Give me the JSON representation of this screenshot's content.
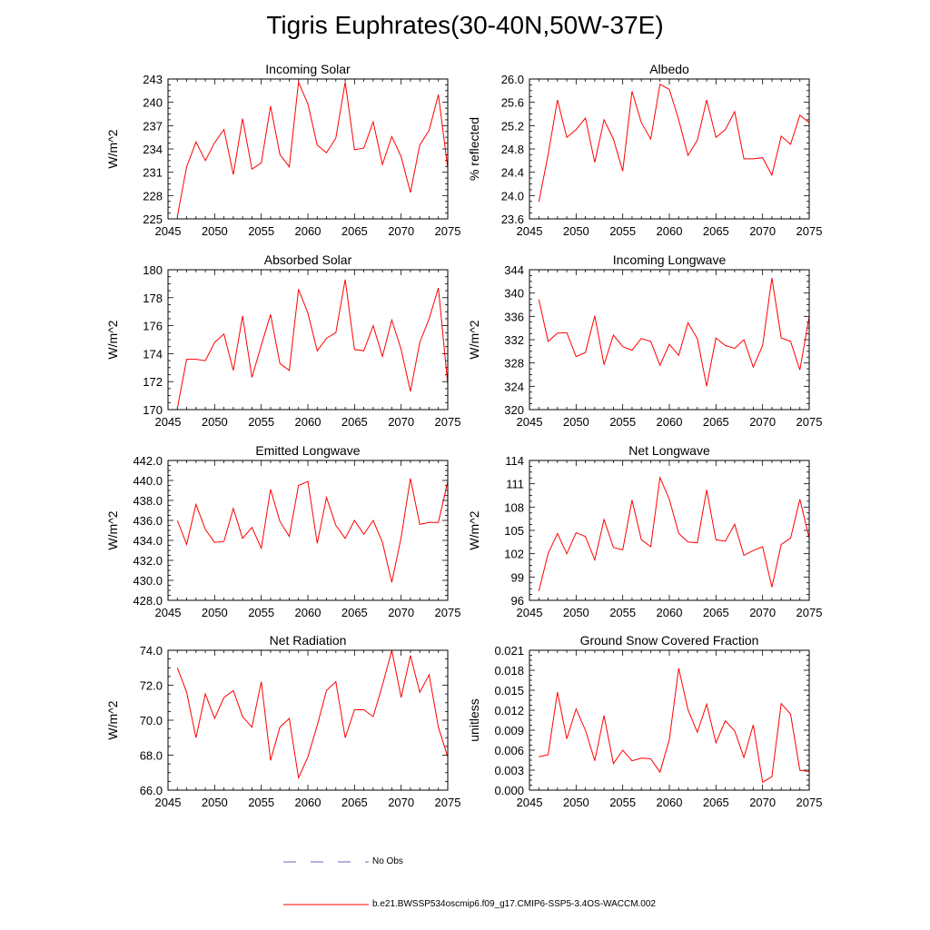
{
  "title": "Tigris Euphrates(30-40N,50W-37E)",
  "colors": {
    "model": "#ff0000",
    "obs": "#6666cc",
    "axis": "#000000"
  },
  "legend": {
    "obs_label": "No Obs",
    "model_label": "b.e21.BWSSP534oscmip6.f09_g17.CMIP6-SSP5-3.4OS-WACCM.002"
  },
  "chart_data": [
    {
      "type": "line",
      "title": "Incoming Solar",
      "ylabel": "W/m^2",
      "xlabel": "",
      "xlim": [
        2045,
        2075
      ],
      "ylim": [
        225,
        243
      ],
      "xticks": [
        2045,
        2050,
        2055,
        2060,
        2065,
        2070,
        2075
      ],
      "yticks": [
        225,
        228,
        231,
        234,
        237,
        240,
        243
      ],
      "ytick_labels": [
        "225",
        "228",
        "231",
        "234",
        "237",
        "240",
        "243"
      ],
      "x": [
        2046,
        2047,
        2048,
        2049,
        2050,
        2051,
        2052,
        2053,
        2054,
        2055,
        2056,
        2057,
        2058,
        2059,
        2060,
        2061,
        2062,
        2063,
        2064,
        2065,
        2066,
        2067,
        2068,
        2069,
        2070,
        2071,
        2072,
        2073,
        2074,
        2075
      ],
      "values": [
        225.3,
        231.7,
        234.9,
        232.5,
        234.8,
        236.5,
        230.7,
        237.9,
        231.4,
        232.2,
        239.5,
        233.3,
        231.7,
        242.6,
        239.8,
        234.5,
        233.5,
        235.4,
        242.6,
        233.9,
        234.1,
        237.5,
        232.0,
        235.6,
        233.0,
        228.4,
        234.5,
        236.4,
        241.0,
        231.5
      ]
    },
    {
      "type": "line",
      "title": "Albedo",
      "ylabel": "% reflected",
      "xlabel": "",
      "xlim": [
        2045,
        2075
      ],
      "ylim": [
        23.6,
        26.0
      ],
      "xticks": [
        2045,
        2050,
        2055,
        2060,
        2065,
        2070,
        2075
      ],
      "yticks": [
        23.6,
        24.0,
        24.4,
        24.8,
        25.2,
        25.6,
        26.0
      ],
      "ytick_labels": [
        "23.6",
        "24.0",
        "24.4",
        "24.8",
        "25.2",
        "25.6",
        "26.0"
      ],
      "x": [
        2046,
        2047,
        2048,
        2049,
        2050,
        2051,
        2052,
        2053,
        2054,
        2055,
        2056,
        2057,
        2058,
        2059,
        2060,
        2061,
        2062,
        2063,
        2064,
        2065,
        2066,
        2067,
        2068,
        2069,
        2070,
        2071,
        2072,
        2073,
        2074,
        2075
      ],
      "values": [
        23.89,
        24.7,
        25.64,
        25.0,
        25.13,
        25.33,
        24.57,
        25.3,
        24.97,
        24.42,
        25.79,
        25.25,
        24.97,
        25.91,
        25.82,
        25.3,
        24.69,
        24.95,
        25.64,
        25.0,
        25.13,
        25.44,
        24.63,
        24.63,
        24.65,
        24.35,
        25.02,
        24.88,
        25.38,
        25.25
      ]
    },
    {
      "type": "line",
      "title": "Absorbed Solar",
      "ylabel": "W/m^2",
      "xlabel": "",
      "xlim": [
        2045,
        2075
      ],
      "ylim": [
        170,
        180
      ],
      "xticks": [
        2045,
        2050,
        2055,
        2060,
        2065,
        2070,
        2075
      ],
      "yticks": [
        170,
        172,
        174,
        176,
        178,
        180
      ],
      "ytick_labels": [
        "170",
        "172",
        "174",
        "176",
        "178",
        "180"
      ],
      "x": [
        2046,
        2047,
        2048,
        2049,
        2050,
        2051,
        2052,
        2053,
        2054,
        2055,
        2056,
        2057,
        2058,
        2059,
        2060,
        2061,
        2062,
        2063,
        2064,
        2065,
        2066,
        2067,
        2068,
        2069,
        2070,
        2071,
        2072,
        2073,
        2074,
        2075
      ],
      "values": [
        170.1,
        173.6,
        173.6,
        173.5,
        174.8,
        175.4,
        172.8,
        176.7,
        172.3,
        174.6,
        176.8,
        173.3,
        172.8,
        178.6,
        176.9,
        174.2,
        175.1,
        175.5,
        179.3,
        174.3,
        174.2,
        176.0,
        173.8,
        176.4,
        174.3,
        171.3,
        174.8,
        176.5,
        178.7,
        171.8
      ]
    },
    {
      "type": "line",
      "title": "Incoming Longwave",
      "ylabel": "W/m^2",
      "xlabel": "",
      "xlim": [
        2045,
        2075
      ],
      "ylim": [
        320,
        344
      ],
      "xticks": [
        2045,
        2050,
        2055,
        2060,
        2065,
        2070,
        2075
      ],
      "yticks": [
        320,
        324,
        328,
        332,
        336,
        340,
        344
      ],
      "ytick_labels": [
        "320",
        "324",
        "328",
        "332",
        "336",
        "340",
        "344"
      ],
      "x": [
        2046,
        2047,
        2048,
        2049,
        2050,
        2051,
        2052,
        2053,
        2054,
        2055,
        2056,
        2057,
        2058,
        2059,
        2060,
        2061,
        2062,
        2063,
        2064,
        2065,
        2066,
        2067,
        2068,
        2069,
        2070,
        2071,
        2072,
        2073,
        2074,
        2075
      ],
      "values": [
        338.9,
        331.7,
        333.1,
        333.2,
        329.1,
        329.8,
        336.1,
        327.7,
        332.8,
        330.8,
        330.2,
        332.2,
        331.7,
        327.6,
        331.2,
        329.3,
        334.9,
        332.2,
        324.0,
        332.3,
        331.0,
        330.5,
        332.0,
        327.3,
        331.0,
        342.6,
        332.3,
        331.7,
        326.8,
        336.0
      ]
    },
    {
      "type": "line",
      "title": "Emitted Longwave",
      "ylabel": "W/m^2",
      "xlabel": "",
      "xlim": [
        2045,
        2075
      ],
      "ylim": [
        428.0,
        442.0
      ],
      "xticks": [
        2045,
        2050,
        2055,
        2060,
        2065,
        2070,
        2075
      ],
      "yticks": [
        428,
        430,
        432,
        434,
        436,
        438,
        440,
        442
      ],
      "ytick_labels": [
        "428.0",
        "430.0",
        "432.0",
        "434.0",
        "436.0",
        "438.0",
        "440.0",
        "442.0"
      ],
      "x": [
        2046,
        2047,
        2048,
        2049,
        2050,
        2051,
        2052,
        2053,
        2054,
        2055,
        2056,
        2057,
        2058,
        2059,
        2060,
        2061,
        2062,
        2063,
        2064,
        2065,
        2066,
        2067,
        2068,
        2069,
        2070,
        2071,
        2072,
        2073,
        2074,
        2075
      ],
      "values": [
        436.0,
        433.6,
        437.6,
        435.1,
        433.8,
        433.9,
        437.2,
        434.2,
        435.3,
        433.2,
        439.1,
        435.9,
        434.4,
        439.5,
        439.9,
        433.7,
        438.3,
        435.5,
        434.2,
        436.0,
        434.6,
        436.0,
        433.8,
        429.8,
        434.3,
        440.2,
        435.6,
        435.8,
        435.8,
        439.9
      ]
    },
    {
      "type": "line",
      "title": "Net Longwave",
      "ylabel": "W/m^2",
      "xlabel": "",
      "xlim": [
        2045,
        2075
      ],
      "ylim": [
        96,
        114
      ],
      "xticks": [
        2045,
        2050,
        2055,
        2060,
        2065,
        2070,
        2075
      ],
      "yticks": [
        96,
        99,
        102,
        105,
        108,
        111,
        114
      ],
      "ytick_labels": [
        "96",
        "99",
        "102",
        "105",
        "108",
        "111",
        "114"
      ],
      "x": [
        2046,
        2047,
        2048,
        2049,
        2050,
        2051,
        2052,
        2053,
        2054,
        2055,
        2056,
        2057,
        2058,
        2059,
        2060,
        2061,
        2062,
        2063,
        2064,
        2065,
        2066,
        2067,
        2068,
        2069,
        2070,
        2071,
        2072,
        2073,
        2074,
        2075
      ],
      "values": [
        97.2,
        102.0,
        104.6,
        102.0,
        104.7,
        104.2,
        101.2,
        106.4,
        102.8,
        102.5,
        108.9,
        103.8,
        102.9,
        111.8,
        109.0,
        104.6,
        103.5,
        103.4,
        110.2,
        103.8,
        103.6,
        105.8,
        101.8,
        102.4,
        102.9,
        97.7,
        103.2,
        104.0,
        109.0,
        104.0
      ]
    },
    {
      "type": "line",
      "title": "Net Radiation",
      "ylabel": "W/m^2",
      "xlabel": "",
      "xlim": [
        2045,
        2075
      ],
      "ylim": [
        66.0,
        74.0
      ],
      "xticks": [
        2045,
        2050,
        2055,
        2060,
        2065,
        2070,
        2075
      ],
      "yticks": [
        66,
        68,
        70,
        72,
        74
      ],
      "ytick_labels": [
        "66.0",
        "68.0",
        "70.0",
        "72.0",
        "74.0"
      ],
      "x": [
        2046,
        2047,
        2048,
        2049,
        2050,
        2051,
        2052,
        2053,
        2054,
        2055,
        2056,
        2057,
        2058,
        2059,
        2060,
        2061,
        2062,
        2063,
        2064,
        2065,
        2066,
        2067,
        2068,
        2069,
        2070,
        2071,
        2072,
        2073,
        2074,
        2075
      ],
      "values": [
        73.0,
        71.6,
        69.0,
        71.5,
        70.1,
        71.3,
        71.7,
        70.2,
        69.6,
        72.2,
        67.7,
        69.6,
        70.1,
        66.7,
        67.9,
        69.7,
        71.7,
        72.2,
        69.0,
        70.6,
        70.6,
        70.2,
        72.0,
        74.0,
        71.3,
        73.7,
        71.6,
        72.6,
        69.6,
        67.9
      ]
    },
    {
      "type": "line",
      "title": "Ground Snow Covered Fraction",
      "ylabel": "unitless",
      "xlabel": "",
      "xlim": [
        2045,
        2075
      ],
      "ylim": [
        0.0,
        0.021
      ],
      "xticks": [
        2045,
        2050,
        2055,
        2060,
        2065,
        2070,
        2075
      ],
      "yticks": [
        0,
        0.003,
        0.006,
        0.009,
        0.012,
        0.015,
        0.018,
        0.021
      ],
      "ytick_labels": [
        "0.000",
        "0.003",
        "0.006",
        "0.009",
        "0.012",
        "0.015",
        "0.018",
        "0.021"
      ],
      "x": [
        2046,
        2047,
        2048,
        2049,
        2050,
        2051,
        2052,
        2053,
        2054,
        2055,
        2056,
        2057,
        2058,
        2059,
        2060,
        2061,
        2062,
        2063,
        2064,
        2065,
        2066,
        2067,
        2068,
        2069,
        2070,
        2071,
        2072,
        2073,
        2074,
        2075
      ],
      "values": [
        0.005,
        0.0053,
        0.0147,
        0.0077,
        0.0122,
        0.009,
        0.0044,
        0.0112,
        0.004,
        0.006,
        0.0044,
        0.0048,
        0.0047,
        0.0027,
        0.0076,
        0.0183,
        0.0121,
        0.0087,
        0.0129,
        0.0071,
        0.0104,
        0.0089,
        0.0049,
        0.0098,
        0.0012,
        0.002,
        0.013,
        0.0114,
        0.003,
        0.0028
      ]
    }
  ]
}
